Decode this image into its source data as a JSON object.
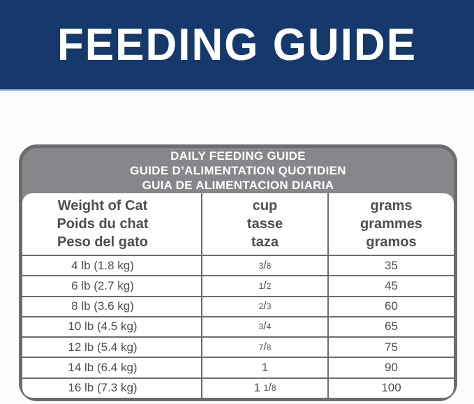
{
  "banner": {
    "title": "FEEDING GUIDE"
  },
  "table": {
    "title_lines": [
      "DAILY FEEDING GUIDE",
      "GUIDE D’ALIMENTATION QUOTIDIEN",
      "GUIA DE ALIMENTACION DIARIA"
    ],
    "columns": [
      {
        "lines": [
          "Weight of Cat",
          "Poids du chat",
          "Peso del gato"
        ]
      },
      {
        "lines": [
          "cup",
          "tasse",
          "taza"
        ]
      },
      {
        "lines": [
          "grams",
          "grammes",
          "gramos"
        ]
      }
    ],
    "rows": [
      {
        "weight": "4 lb (1.8 kg)",
        "cup": {
          "whole": "",
          "num": "3",
          "sep": "/",
          "den": "8"
        },
        "grams": "35"
      },
      {
        "weight": "6 lb (2.7 kg)",
        "cup": {
          "whole": "",
          "num": "1",
          "sep": "/",
          "den": "2"
        },
        "grams": "45"
      },
      {
        "weight": "8 lb (3.6 kg)",
        "cup": {
          "whole": "",
          "num": "2",
          "sep": "/",
          "den": "3"
        },
        "grams": "60"
      },
      {
        "weight": "10 lb (4.5 kg)",
        "cup": {
          "whole": "",
          "num": "3",
          "sep": "/",
          "den": "4"
        },
        "grams": "65"
      },
      {
        "weight": "12 lb (5.4 kg)",
        "cup": {
          "whole": "",
          "num": "7",
          "sep": "/",
          "den": "8"
        },
        "grams": "75"
      },
      {
        "weight": "14 lb (6.4 kg)",
        "cup": {
          "whole": "1",
          "num": "",
          "sep": "",
          "den": ""
        },
        "grams": "90"
      },
      {
        "weight": "16 lb (7.3 kg)",
        "cup": {
          "whole": "1 ",
          "num": "1",
          "sep": "/",
          "den": "8"
        },
        "grams": "100"
      }
    ]
  },
  "colors": {
    "banner_bg": "#16396b",
    "header_gray": "#85878a",
    "border_gray": "#6b6c6f",
    "text_dark": "#4d4e50",
    "text_white": "#ffffff",
    "page_bg": "#fdfdfb"
  }
}
